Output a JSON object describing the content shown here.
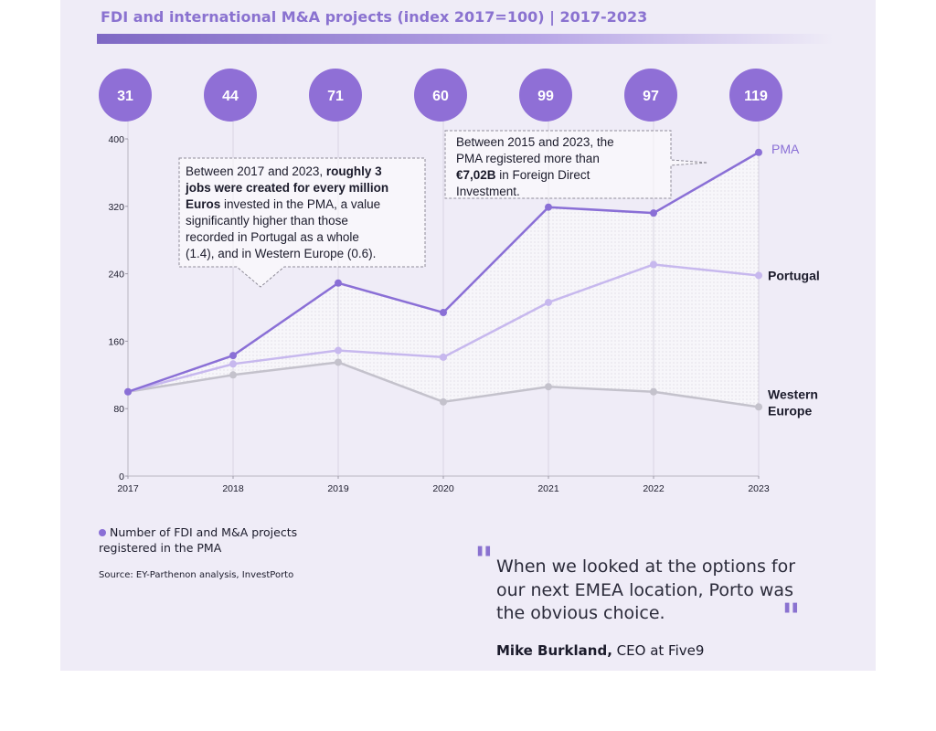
{
  "title": "FDI and international M&A projects (index 2017=100) | 2017-2023",
  "chart_data": {
    "type": "line",
    "x": [
      "2017",
      "2018",
      "2019",
      "2020",
      "2021",
      "2022",
      "2023"
    ],
    "ylim": [
      0,
      400
    ],
    "yticks": [
      "0",
      "80",
      "160",
      "240",
      "320",
      "400"
    ],
    "series": [
      {
        "name": "PMA",
        "values": [
          100,
          143,
          229,
          194,
          319,
          312,
          384
        ],
        "color": "#8a6fd6"
      },
      {
        "name": "Portugal",
        "values": [
          100,
          133,
          149,
          141,
          206,
          251,
          238
        ],
        "color": "#c7b8ee"
      },
      {
        "name": "Western Europe",
        "values": [
          100,
          120,
          135,
          88,
          106,
          100,
          82
        ],
        "color": "#c4c2cc"
      }
    ],
    "series_labels": [
      {
        "lines": [
          "PMA"
        ],
        "color": "#8a6fd6"
      },
      {
        "lines": [
          "Portugal"
        ],
        "color": "#1b1b2b"
      },
      {
        "lines": [
          "Western",
          "Europe"
        ],
        "color": "#1b1b2b"
      }
    ],
    "project_counts": [
      "31",
      "44",
      "71",
      "60",
      "99",
      "97",
      "119"
    ],
    "grid": false
  },
  "annotation_1": {
    "lines": [
      [
        {
          "t": "Between 2017 and 2023, ",
          "b": false
        },
        {
          "t": "roughly 3",
          "b": true
        }
      ],
      [
        {
          "t": "jobs were created for every million",
          "b": true
        }
      ],
      [
        {
          "t": "Euros",
          "b": true
        },
        {
          "t": " invested in the PMA, a value",
          "b": false
        }
      ],
      [
        {
          "t": "significantly higher than those",
          "b": false
        }
      ],
      [
        {
          "t": "recorded in Portugal as a whole",
          "b": false
        }
      ],
      [
        {
          "t": "(1.4), and in Western Europe (0.6).",
          "b": false
        }
      ]
    ]
  },
  "annotation_2": {
    "lines": [
      [
        {
          "t": "Between 2015 and 2023, the",
          "b": false
        }
      ],
      [
        {
          "t": "PMA registered more than",
          "b": false
        }
      ],
      [
        {
          "t": "€7,02B",
          "b": true
        },
        {
          "t": " in Foreign Direct",
          "b": false
        }
      ],
      [
        {
          "t": "Investment.",
          "b": false
        }
      ]
    ]
  },
  "legend": {
    "line1": "Number of FDI and M&A projects",
    "line2": "registered in the PMA"
  },
  "source": "Source: EY-Parthenon analysis, InvestPorto",
  "quote": {
    "open_mark": "\"",
    "close_mark": "\"",
    "text": "When we looked at the options for our next EMEA location, Porto was the obvious choice.",
    "author": "Mike Burkland,",
    "role": " CEO at Five9"
  }
}
